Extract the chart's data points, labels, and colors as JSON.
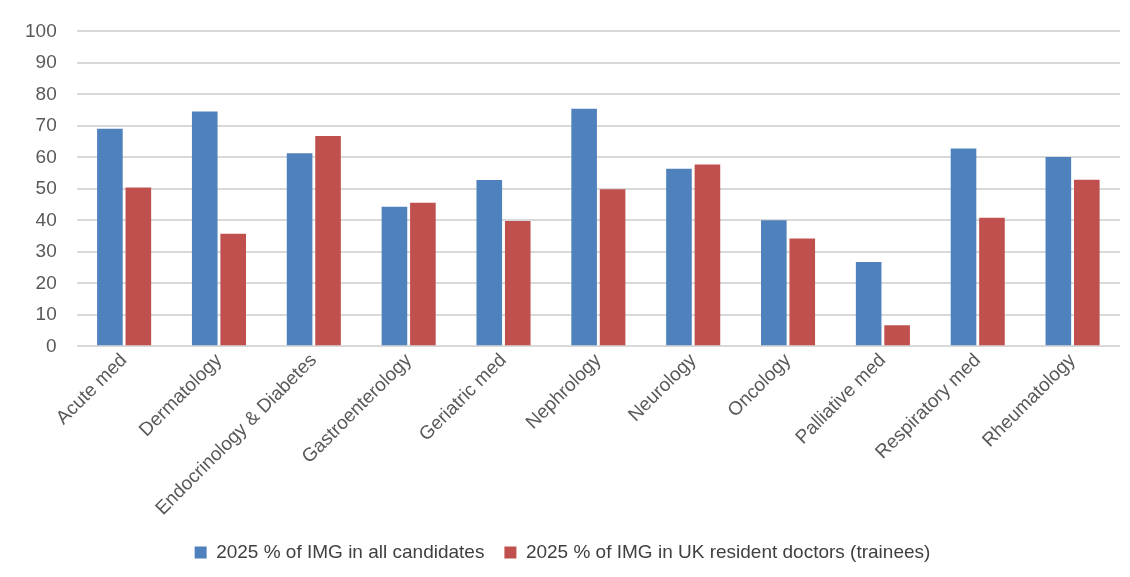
{
  "chart_data": {
    "type": "bar",
    "categories": [
      "Acute med",
      "Dermatology",
      "Endocrinology & Diabetes",
      "Gastroenterology",
      "Geriatric med",
      "Nephrology",
      "Neurology",
      "Oncology",
      "Palliative med",
      "Respiratory med",
      "Rheumatology"
    ],
    "series": [
      {
        "name": "2025 % of IMG in all candidates",
        "color": "#4f81bd",
        "values": [
          69.1,
          74.6,
          61.3,
          44.3,
          52.8,
          75.4,
          56.4,
          40,
          26.8,
          62.8,
          60.1
        ]
      },
      {
        "name": "2025 % of IMG in UK resident doctors (trainees)",
        "color": "#c0504d",
        "values": [
          50.4,
          35.7,
          66.8,
          45.6,
          39.8,
          49.9,
          57.7,
          34.2,
          6.7,
          40.8,
          52.9
        ]
      }
    ],
    "ylim": [
      0,
      100
    ],
    "yticks": [
      0,
      10,
      20,
      30,
      40,
      50,
      60,
      70,
      80,
      90,
      100
    ],
    "grid": "y",
    "legend": "bottom"
  }
}
